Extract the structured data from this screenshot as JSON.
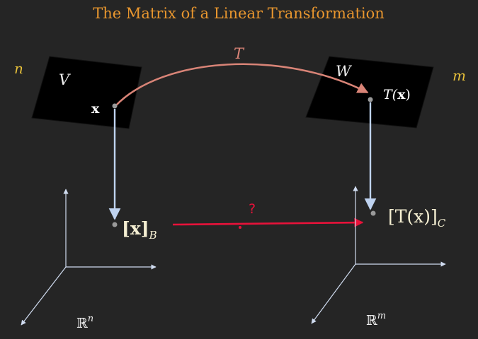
{
  "title": "The Matrix of a Linear Transformation",
  "left": {
    "dim": "n",
    "space": "V",
    "vector": "x",
    "coord_main": "[x]",
    "coord_sub": "B",
    "rspace_base": "ℝ",
    "rspace_exp": "n"
  },
  "right": {
    "dim": "m",
    "space": "W",
    "image_pre": "T(",
    "image_x": "x",
    "image_post": ")",
    "coord_main": "[T(x)]",
    "coord_sub": "C",
    "rspace_base": "ℝ",
    "rspace_exp": "m"
  },
  "map_label": "T",
  "unknown_label": "?",
  "colors": {
    "background": "#252525",
    "title": "#E8962E",
    "dim_labels": "#E8C13A",
    "map_arrow": "#D98477",
    "unknown_arrow": "#E8123A",
    "down_arrows": "#BFD3F0",
    "axes": "#D0DCF0",
    "plane": "#000000",
    "points": "#9A9A9A",
    "coord_text": "#F5EFD2"
  }
}
